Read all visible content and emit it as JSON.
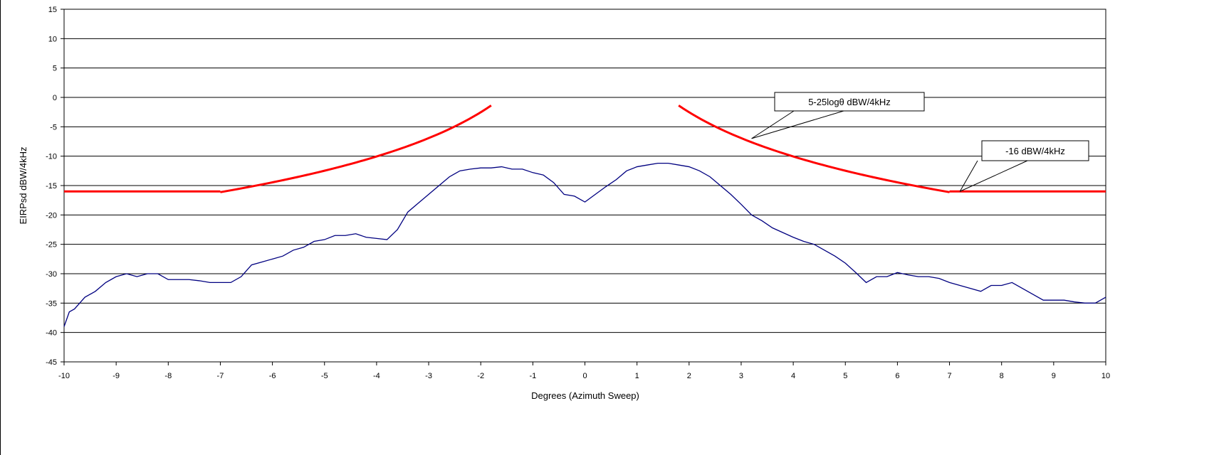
{
  "chart_data": {
    "type": "line",
    "xlabel": "Degrees (Azimuth Sweep)",
    "ylabel": "EIRPsd dBW/4kHz",
    "xlim": [
      -10,
      10
    ],
    "ylim": [
      -45,
      15
    ],
    "x_ticks": [
      -10,
      -9,
      -8,
      -7,
      -6,
      -5,
      -4,
      -3,
      -2,
      -1,
      0,
      1,
      2,
      3,
      4,
      5,
      6,
      7,
      8,
      9,
      10
    ],
    "y_ticks": [
      15,
      10,
      5,
      0,
      -5,
      -10,
      -15,
      -20,
      -25,
      -30,
      -35,
      -40,
      -45
    ],
    "grid": "horizontal",
    "legend": "none",
    "colors": {
      "measured": "#000080",
      "mask": "#ff0000"
    },
    "annotations": [
      {
        "text": "5-25logθ dBW/4kHz",
        "points_to": [
          3.2,
          -7.0
        ]
      },
      {
        "text": "-16 dBW/4kHz",
        "points_to": [
          7.2,
          -16
        ]
      }
    ],
    "mask": {
      "segments": [
        {
          "formula": "5-25log|θ|",
          "x_range": [
            -7,
            -1.8
          ]
        },
        {
          "formula": "5-25log|θ|",
          "x_range": [
            1.8,
            7
          ]
        },
        {
          "value": -16,
          "x_range": [
            -10,
            -7
          ]
        },
        {
          "value": -16,
          "x_range": [
            7,
            10
          ]
        }
      ]
    },
    "series": [
      {
        "x": [
          -10,
          -9.9,
          -9.8,
          -9.6,
          -9.4,
          -9.2,
          -9.0,
          -8.8,
          -8.6,
          -8.4,
          -8.2,
          -8.0,
          -7.8,
          -7.6,
          -7.4,
          -7.2,
          -7.0,
          -6.8,
          -6.6,
          -6.4,
          -6.2,
          -6.0,
          -5.8,
          -5.6,
          -5.4,
          -5.2,
          -5.0,
          -4.8,
          -4.6,
          -4.4,
          -4.2,
          -4.0,
          -3.8,
          -3.6,
          -3.4,
          -3.2,
          -3.0,
          -2.8,
          -2.6,
          -2.4,
          -2.2,
          -2.0,
          -1.8,
          -1.6,
          -1.4,
          -1.2,
          -1.0,
          -0.8,
          -0.6,
          -0.4,
          -0.2,
          0.0,
          0.2,
          0.4,
          0.6,
          0.8,
          1.0,
          1.2,
          1.4,
          1.6,
          1.8,
          2.0,
          2.2,
          2.4,
          2.6,
          2.8,
          3.0,
          3.2,
          3.4,
          3.6,
          3.8,
          4.0,
          4.2,
          4.4,
          4.6,
          4.8,
          5.0,
          5.2,
          5.4,
          5.6,
          5.8,
          6.0,
          6.2,
          6.4,
          6.6,
          6.8,
          7.0,
          7.2,
          7.4,
          7.6,
          7.8,
          8.0,
          8.2,
          8.4,
          8.6,
          8.8,
          9.0,
          9.2,
          9.4,
          9.6,
          9.8,
          10.0
        ],
        "values": [
          -39,
          -36.5,
          -36,
          -34,
          -33,
          -31.5,
          -30.5,
          -30,
          -30.5,
          -30,
          -30,
          -31,
          -31,
          -31,
          -31.2,
          -31.5,
          -31.5,
          -31.5,
          -30.5,
          -28.5,
          -28,
          -27.5,
          -27,
          -26,
          -25.5,
          -24.5,
          -24.2,
          -23.5,
          -23.5,
          -23.2,
          -23.8,
          -24,
          -24.2,
          -22.5,
          -19.5,
          -18,
          -16.5,
          -15,
          -13.5,
          -12.5,
          -12.2,
          -12,
          -12,
          -11.8,
          -12.2,
          -12.2,
          -12.8,
          -13.2,
          -14.5,
          -16.5,
          -16.8,
          -17.8,
          -16.5,
          -15.2,
          -14,
          -12.5,
          -11.8,
          -11.5,
          -11.2,
          -11.2,
          -11.5,
          -11.8,
          -12.5,
          -13.5,
          -15,
          -16.5,
          -18.2,
          -20,
          -21,
          -22.2,
          -23,
          -23.8,
          -24.5,
          -25,
          -26,
          -27,
          -28.2,
          -29.8,
          -31.5,
          -30.5,
          -30.5,
          -29.8,
          -30.2,
          -30.5,
          -30.5,
          -30.8,
          -31.5,
          -32,
          -32.5,
          -33,
          -32,
          -32,
          -31.5,
          -32.5,
          -33.5,
          -34.5,
          -34.5,
          -34.5,
          -34.8,
          -35,
          -35,
          -34
        ]
      }
    ]
  }
}
